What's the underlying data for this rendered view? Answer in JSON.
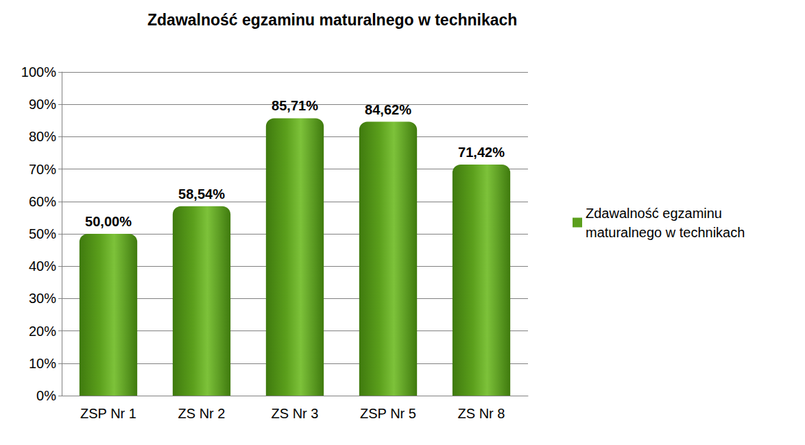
{
  "chart_data": {
    "type": "bar",
    "title": "Zdawalność egzaminu maturalnego w technikach",
    "categories": [
      "ZSP Nr 1",
      "ZS Nr 2",
      "ZS Nr 3",
      "ZSP Nr 5",
      "ZS Nr 8"
    ],
    "series": [
      {
        "name": "Zdawalność egzaminu maturalnego w technikach",
        "color": "#5b9f1c",
        "values": [
          50.0,
          58.54,
          85.71,
          84.62,
          71.42
        ],
        "value_labels": [
          "50,00%",
          "58,54%",
          "85,71%",
          "84,62%",
          "71,42%"
        ]
      }
    ],
    "ylim": [
      0,
      100
    ],
    "yticks": [
      {
        "value": 0,
        "label": "0%"
      },
      {
        "value": 10,
        "label": "10%"
      },
      {
        "value": 20,
        "label": "20%"
      },
      {
        "value": 30,
        "label": "30%"
      },
      {
        "value": 40,
        "label": "40%"
      },
      {
        "value": 50,
        "label": "50%"
      },
      {
        "value": 60,
        "label": "60%"
      },
      {
        "value": 70,
        "label": "70%"
      },
      {
        "value": 80,
        "label": "80%"
      },
      {
        "value": 90,
        "label": "90%"
      },
      {
        "value": 100,
        "label": "100%"
      }
    ],
    "grid": true,
    "legend": "right",
    "data_labels": true
  }
}
